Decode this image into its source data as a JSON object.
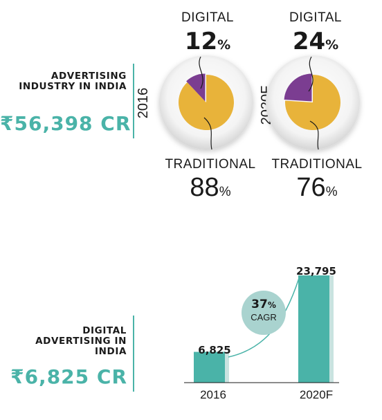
{
  "top": {
    "label": "ADVERTISING INDUSTRY IN INDIA",
    "amount": "₹56,398 CR",
    "charts": [
      {
        "year": "2016",
        "digital_label": "DIGITAL",
        "digital_pct": "12",
        "traditional_label": "TRADITIONAL",
        "traditional_pct": "88",
        "pct_sign": "%"
      },
      {
        "year": "2020F",
        "digital_label": "DIGITAL",
        "digital_pct": "24",
        "traditional_label": "TRADITIONAL",
        "traditional_pct": "76",
        "pct_sign": "%"
      }
    ]
  },
  "bottom": {
    "label": "DIGITAL ADVERTISING IN INDIA",
    "amount": "₹6,825 CR",
    "cagr_value": "37",
    "cagr_sign": "%",
    "cagr_label": "CAGR"
  },
  "colors": {
    "teal": "#4ab3a8",
    "yellow": "#e8b33a",
    "purple": "#7b3d91"
  },
  "chart_data": [
    {
      "type": "pie",
      "title": "2016",
      "labels": [
        "DIGITAL",
        "TRADITIONAL"
      ],
      "values": [
        12,
        88
      ]
    },
    {
      "type": "pie",
      "title": "2020F",
      "labels": [
        "DIGITAL",
        "TRADITIONAL"
      ],
      "values": [
        24,
        76
      ]
    },
    {
      "type": "bar",
      "categories": [
        "2016",
        "2020F"
      ],
      "values": [
        6825,
        23795
      ],
      "value_labels": [
        "6,825",
        "23,795"
      ],
      "annotation": "37% CAGR"
    }
  ]
}
